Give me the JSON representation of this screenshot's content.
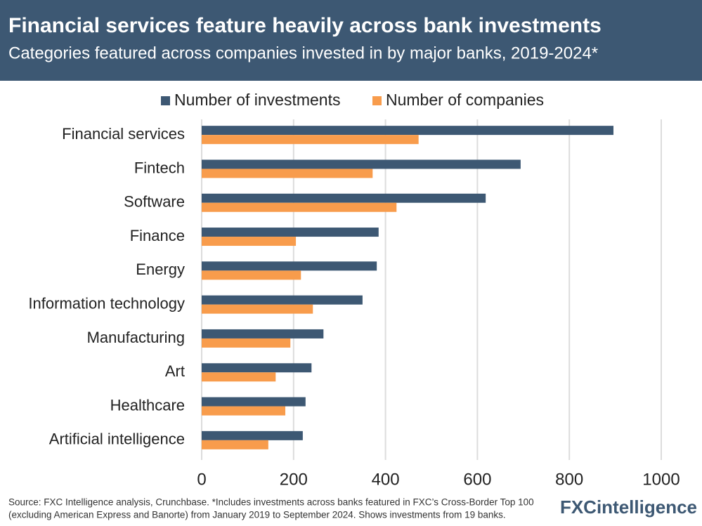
{
  "chart_data": {
    "type": "hbar",
    "title": "Financial services feature heavily across bank investments",
    "subtitle": "Categories featured across companies invested in by major banks, 2019-2024*",
    "categories": [
      "Financial services",
      "Fintech",
      "Software",
      "Finance",
      "Energy",
      "Information technology",
      "Manufacturing",
      "Art",
      "Healthcare",
      "Artificial intelligence"
    ],
    "series": [
      {
        "name": "Number of investments",
        "color": "#3d5873",
        "values": [
          896,
          694,
          618,
          385,
          381,
          350,
          265,
          239,
          226,
          220
        ]
      },
      {
        "name": "Number of companies",
        "color": "#f89c4c",
        "values": [
          472,
          372,
          424,
          205,
          216,
          242,
          193,
          161,
          182,
          145
        ]
      }
    ],
    "xlim": [
      0,
      1000
    ],
    "xticks": [
      0,
      200,
      400,
      600,
      800,
      1000
    ],
    "grid": true,
    "legend": "top",
    "source": [
      "Source: FXC Intelligence analysis, Crunchbase. *Includes investments across banks featured in FXC’s Cross-Border Top 100",
      "(excluding American Express and Banorte) from January 2019 to September 2024. Shows investments from 19 banks."
    ],
    "logo": "FXCintelligence"
  }
}
